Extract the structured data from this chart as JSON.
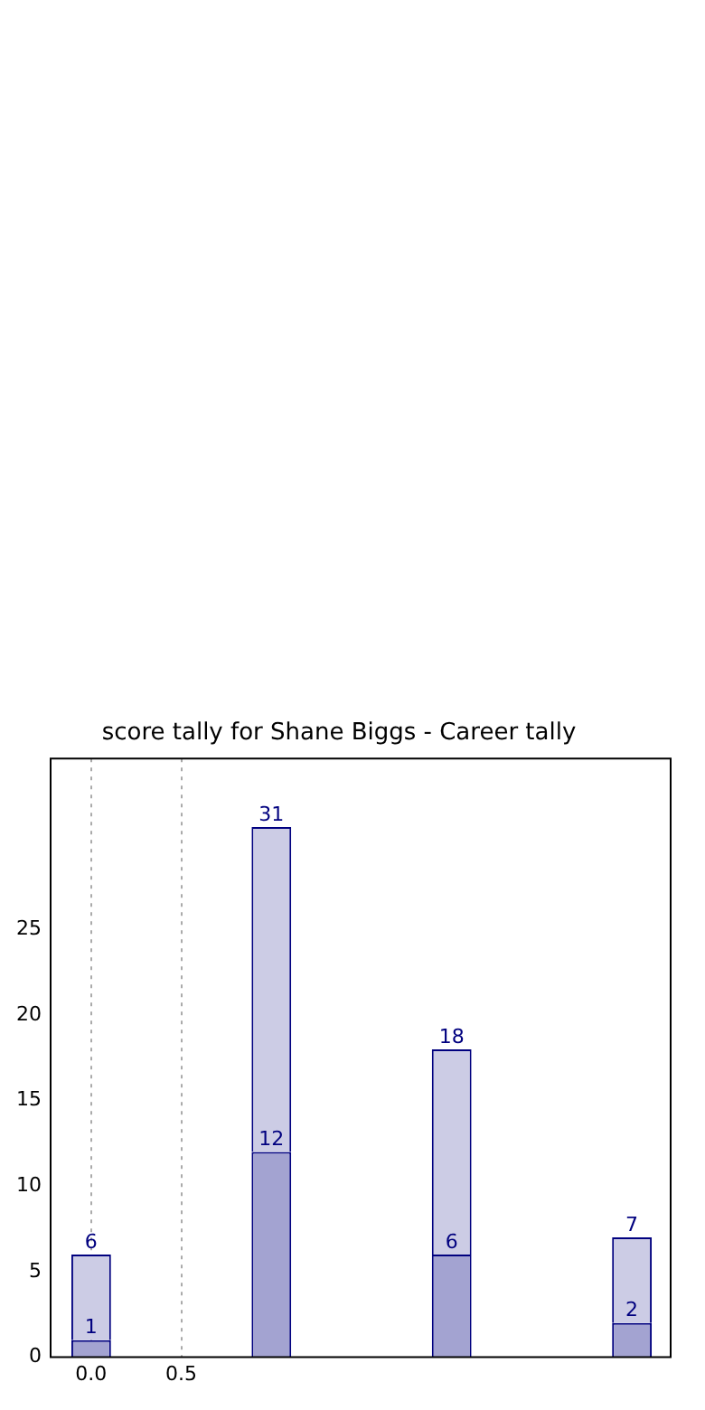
{
  "chart_data": {
    "type": "bar",
    "title": "score tally for Shane Biggs - Career tally",
    "x": [
      0,
      1,
      2,
      3
    ],
    "stacked": true,
    "series": [
      {
        "color": "#a3a3d1",
        "values": [
          1,
          12,
          6,
          2
        ],
        "value_labels": [
          "1",
          "12",
          "6",
          "2"
        ]
      },
      {
        "color": "#ccccE5",
        "values": [
          5,
          19,
          12,
          5
        ]
      }
    ],
    "totals": [
      "6",
      "31",
      "18",
      "7"
    ],
    "xlim": [
      -0.225,
      3.215
    ],
    "xticks": [
      {
        "value": 0,
        "label": "0.0"
      },
      0.5
    ],
    "ylim": [
      0,
      35
    ],
    "yticks": [
      0,
      5,
      10,
      15,
      20,
      25
    ],
    "grid": "x"
  }
}
